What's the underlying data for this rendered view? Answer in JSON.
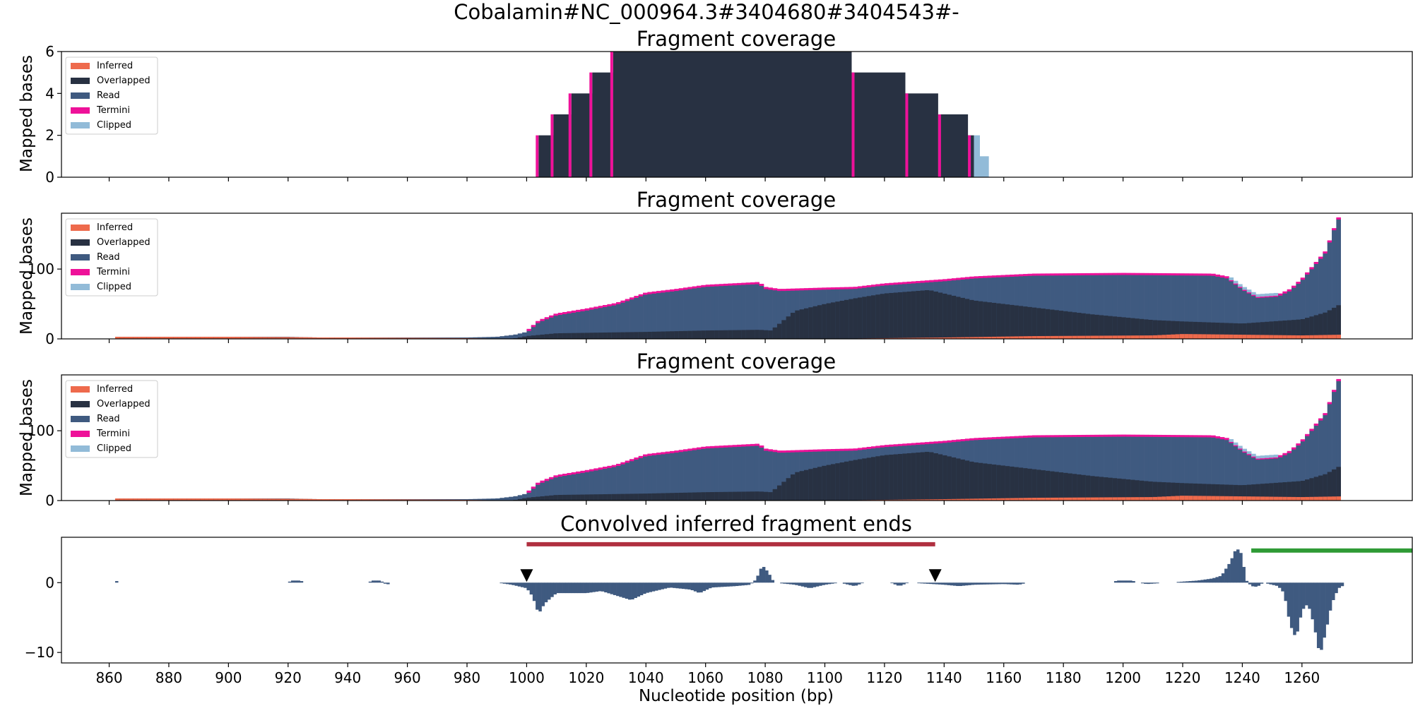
{
  "figure_title": "Cobalamin#NC_000964.3#3404680#3404543#-",
  "colors": {
    "Inferred": "#ee6a4c",
    "Overlapped": "#283142",
    "Read": "#3f5a80",
    "Termini": "#ee1199",
    "Clipped": "#92bbd8",
    "signal": "#3f5a80",
    "region_red": "#b03040",
    "region_green": "#2e9a35"
  },
  "chart_data": [
    {
      "type": "area",
      "title": "Fragment coverage",
      "ylabel": "Mapped bases",
      "xlim": [
        844,
        1297
      ],
      "ylim": [
        0,
        6
      ],
      "yticks": [
        "0",
        "2",
        "4",
        "6"
      ],
      "legend": [
        "Inferred",
        "Overlapped",
        "Read",
        "Termini",
        "Clipped"
      ],
      "legend_position": "top-left",
      "series": {
        "overlapped_steps": [
          [
            1004,
            1009,
            2
          ],
          [
            1009,
            1015,
            3
          ],
          [
            1015,
            1022,
            4
          ],
          [
            1022,
            1029,
            5
          ],
          [
            1029,
            1109,
            6
          ],
          [
            1109,
            1127,
            5
          ],
          [
            1127,
            1138,
            4
          ],
          [
            1138,
            1148,
            3
          ],
          [
            1148,
            1150,
            2
          ]
        ],
        "termini_edges": [
          1004,
          1009,
          1015,
          1022,
          1029,
          1109,
          1127,
          1138,
          1148
        ],
        "clipped_steps": [
          [
            1150,
            1152,
            2
          ],
          [
            1152,
            1155,
            1
          ]
        ]
      }
    },
    {
      "type": "area",
      "title": "Fragment coverage",
      "ylabel": "Mapped bases",
      "xlim": [
        844,
        1297
      ],
      "ylim": [
        0,
        180
      ],
      "yticks": [
        "0",
        "100"
      ],
      "legend": [
        "Inferred",
        "Overlapped",
        "Read",
        "Termini",
        "Clipped"
      ],
      "legend_position": "top-left",
      "series": {
        "total": [
          [
            862,
            3
          ],
          [
            920,
            3
          ],
          [
            930,
            2
          ],
          [
            980,
            2
          ],
          [
            990,
            3
          ],
          [
            996,
            6
          ],
          [
            1000,
            10
          ],
          [
            1004,
            25
          ],
          [
            1010,
            35
          ],
          [
            1020,
            42
          ],
          [
            1030,
            50
          ],
          [
            1040,
            65
          ],
          [
            1050,
            70
          ],
          [
            1060,
            76
          ],
          [
            1078,
            80
          ],
          [
            1080,
            73
          ],
          [
            1085,
            70
          ],
          [
            1100,
            72
          ],
          [
            1110,
            73
          ],
          [
            1120,
            78
          ],
          [
            1140,
            84
          ],
          [
            1150,
            88
          ],
          [
            1170,
            92
          ],
          [
            1200,
            93
          ],
          [
            1230,
            92
          ],
          [
            1235,
            88
          ],
          [
            1240,
            72
          ],
          [
            1245,
            60
          ],
          [
            1252,
            62
          ],
          [
            1256,
            70
          ],
          [
            1260,
            85
          ],
          [
            1264,
            105
          ],
          [
            1268,
            125
          ],
          [
            1271,
            160
          ],
          [
            1273,
            180
          ]
        ],
        "overlapped": [
          [
            862,
            0
          ],
          [
            995,
            0
          ],
          [
            1000,
            4
          ],
          [
            1010,
            8
          ],
          [
            1040,
            10
          ],
          [
            1060,
            12
          ],
          [
            1078,
            13
          ],
          [
            1082,
            12
          ],
          [
            1090,
            40
          ],
          [
            1100,
            50
          ],
          [
            1110,
            58
          ],
          [
            1120,
            65
          ],
          [
            1135,
            70
          ],
          [
            1140,
            65
          ],
          [
            1150,
            55
          ],
          [
            1170,
            45
          ],
          [
            1190,
            35
          ],
          [
            1210,
            27
          ],
          [
            1220,
            25
          ],
          [
            1240,
            22
          ],
          [
            1250,
            25
          ],
          [
            1260,
            28
          ],
          [
            1268,
            38
          ],
          [
            1273,
            50
          ]
        ],
        "inferred": [
          [
            862,
            3
          ],
          [
            900,
            3
          ],
          [
            940,
            2
          ],
          [
            980,
            1
          ],
          [
            995,
            0
          ],
          [
            1100,
            0
          ],
          [
            1140,
            2
          ],
          [
            1170,
            4
          ],
          [
            1210,
            5
          ],
          [
            1220,
            7
          ],
          [
            1240,
            6
          ],
          [
            1260,
            5
          ],
          [
            1273,
            6
          ]
        ],
        "clipped_range": [
          1236,
          1252
        ]
      }
    },
    {
      "type": "area",
      "title": "Fragment coverage",
      "ylabel": "Mapped bases",
      "xlim": [
        844,
        1297
      ],
      "ylim": [
        0,
        180
      ],
      "yticks": [
        "0",
        "100"
      ],
      "legend": [
        "Inferred",
        "Overlapped",
        "Read",
        "Termini",
        "Clipped"
      ],
      "legend_position": "top-left",
      "series": {
        "total": [
          [
            862,
            3
          ],
          [
            920,
            3
          ],
          [
            930,
            2
          ],
          [
            980,
            2
          ],
          [
            990,
            3
          ],
          [
            996,
            6
          ],
          [
            1000,
            10
          ],
          [
            1004,
            25
          ],
          [
            1010,
            35
          ],
          [
            1020,
            42
          ],
          [
            1030,
            50
          ],
          [
            1040,
            65
          ],
          [
            1050,
            70
          ],
          [
            1060,
            76
          ],
          [
            1078,
            80
          ],
          [
            1080,
            73
          ],
          [
            1085,
            70
          ],
          [
            1100,
            72
          ],
          [
            1110,
            73
          ],
          [
            1120,
            78
          ],
          [
            1140,
            84
          ],
          [
            1150,
            88
          ],
          [
            1170,
            92
          ],
          [
            1200,
            93
          ],
          [
            1230,
            92
          ],
          [
            1235,
            88
          ],
          [
            1240,
            72
          ],
          [
            1245,
            60
          ],
          [
            1252,
            62
          ],
          [
            1256,
            70
          ],
          [
            1260,
            85
          ],
          [
            1264,
            105
          ],
          [
            1268,
            125
          ],
          [
            1271,
            160
          ],
          [
            1273,
            180
          ]
        ],
        "overlapped": [
          [
            862,
            0
          ],
          [
            995,
            0
          ],
          [
            1000,
            4
          ],
          [
            1010,
            8
          ],
          [
            1040,
            10
          ],
          [
            1060,
            12
          ],
          [
            1078,
            13
          ],
          [
            1082,
            12
          ],
          [
            1090,
            40
          ],
          [
            1100,
            50
          ],
          [
            1110,
            58
          ],
          [
            1120,
            65
          ],
          [
            1135,
            70
          ],
          [
            1140,
            65
          ],
          [
            1150,
            55
          ],
          [
            1170,
            45
          ],
          [
            1190,
            35
          ],
          [
            1210,
            27
          ],
          [
            1220,
            25
          ],
          [
            1240,
            22
          ],
          [
            1250,
            25
          ],
          [
            1260,
            28
          ],
          [
            1268,
            38
          ],
          [
            1273,
            50
          ]
        ],
        "inferred": [
          [
            862,
            3
          ],
          [
            900,
            3
          ],
          [
            940,
            2
          ],
          [
            980,
            1
          ],
          [
            995,
            0
          ],
          [
            1100,
            0
          ],
          [
            1140,
            2
          ],
          [
            1170,
            4
          ],
          [
            1210,
            5
          ],
          [
            1220,
            7
          ],
          [
            1240,
            6
          ],
          [
            1260,
            5
          ],
          [
            1273,
            6
          ]
        ],
        "clipped_range": [
          1236,
          1252
        ]
      }
    },
    {
      "type": "bar",
      "title": "Convolved inferred fragment ends",
      "xlabel": "Nucleotide position (bp)",
      "xlim": [
        844,
        1297
      ],
      "ylim": [
        -11.5,
        6.5
      ],
      "yticks": [
        {
          "value": -10,
          "label": "−10"
        },
        {
          "value": 0,
          "label": "0"
        }
      ],
      "xticks": [
        "860",
        "880",
        "900",
        "920",
        "940",
        "960",
        "980",
        "1000",
        "1020",
        "1040",
        "1060",
        "1080",
        "1100",
        "1120",
        "1140",
        "1160",
        "1180",
        "1200",
        "1220",
        "1240",
        "1260"
      ],
      "signal_keypoints": [
        [
          862,
          0.3
        ],
        [
          864,
          0
        ],
        [
          920,
          0
        ],
        [
          921,
          0.3
        ],
        [
          924,
          0.3
        ],
        [
          926,
          0
        ],
        [
          947,
          0
        ],
        [
          948,
          0.3
        ],
        [
          951,
          0.3
        ],
        [
          953,
          -0.3
        ],
        [
          955,
          0
        ],
        [
          990,
          0
        ],
        [
          995,
          -0.3
        ],
        [
          1000,
          -0.8
        ],
        [
          1002,
          -2
        ],
        [
          1004,
          -4.5
        ],
        [
          1006,
          -3
        ],
        [
          1010,
          -1.5
        ],
        [
          1020,
          -1.5
        ],
        [
          1025,
          -1.2
        ],
        [
          1035,
          -2.5
        ],
        [
          1040,
          -1.5
        ],
        [
          1048,
          -0.7
        ],
        [
          1055,
          -1
        ],
        [
          1058,
          -1.5
        ],
        [
          1062,
          -0.7
        ],
        [
          1070,
          -0.5
        ],
        [
          1075,
          -0.3
        ],
        [
          1077,
          0.5
        ],
        [
          1079,
          2.5
        ],
        [
          1081,
          1.5
        ],
        [
          1083,
          0
        ],
        [
          1090,
          -0.3
        ],
        [
          1095,
          -0.8
        ],
        [
          1100,
          -0.3
        ],
        [
          1105,
          0
        ],
        [
          1110,
          -0.5
        ],
        [
          1113,
          0
        ],
        [
          1122,
          0
        ],
        [
          1125,
          -0.5
        ],
        [
          1128,
          0
        ],
        [
          1140,
          -0.3
        ],
        [
          1145,
          -0.5
        ],
        [
          1150,
          -0.3
        ],
        [
          1160,
          -0.2
        ],
        [
          1165,
          -0.3
        ],
        [
          1168,
          0
        ],
        [
          1196,
          0
        ],
        [
          1198,
          0.3
        ],
        [
          1203,
          0.3
        ],
        [
          1205,
          0
        ],
        [
          1208,
          -0.2
        ],
        [
          1215,
          0
        ],
        [
          1225,
          0.3
        ],
        [
          1230,
          0.6
        ],
        [
          1233,
          1
        ],
        [
          1236,
          3
        ],
        [
          1238,
          5
        ],
        [
          1240,
          4
        ],
        [
          1241,
          0.5
        ],
        [
          1242,
          0
        ],
        [
          1243,
          -0.5
        ],
        [
          1245,
          -0.6
        ],
        [
          1247,
          0
        ],
        [
          1252,
          -0.5
        ],
        [
          1254,
          -1.5
        ],
        [
          1256,
          -6
        ],
        [
          1258,
          -8
        ],
        [
          1260,
          -4
        ],
        [
          1262,
          -3
        ],
        [
          1264,
          -6
        ],
        [
          1266,
          -10.5
        ],
        [
          1268,
          -7
        ],
        [
          1270,
          -3
        ],
        [
          1272,
          -1
        ],
        [
          1273,
          -0.5
        ]
      ],
      "markers": [
        {
          "x": 1000,
          "shape": "down-triangle"
        },
        {
          "x": 1137,
          "shape": "down-triangle"
        }
      ],
      "regions": [
        {
          "x0": 1000,
          "x1": 1137,
          "y": 5.5,
          "color": "red"
        },
        {
          "x0": 1243,
          "x1": 1297,
          "y": 4.6,
          "color": "green"
        }
      ]
    }
  ]
}
